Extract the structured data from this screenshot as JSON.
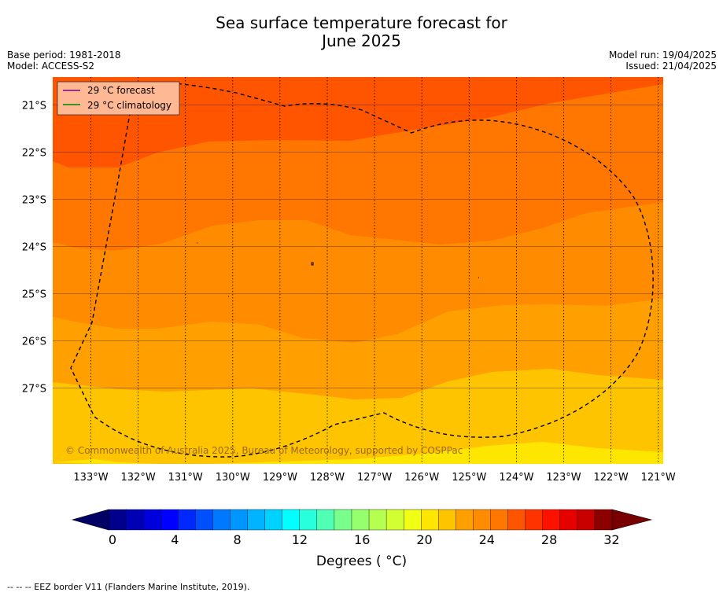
{
  "header": {
    "title_line1": "Sea surface temperature forecast for",
    "title_line2": "June 2025",
    "base_period": "Base period: 1981-2018",
    "model": "Model: ACCESS-S2",
    "model_run": "Model run: 19/04/2025",
    "issued": "Issued: 21/04/2025"
  },
  "legend": {
    "forecast": "29 °C  forecast",
    "climatology": "29 °C  climatology",
    "forecast_color": "#800080",
    "climatology_color": "#008000"
  },
  "map": {
    "lon_labels": [
      "133°W",
      "132°W",
      "131°W",
      "130°W",
      "129°W",
      "128°W",
      "127°W",
      "126°W",
      "125°W",
      "124°W",
      "123°W",
      "122°W",
      "121°W"
    ],
    "lat_labels": [
      "21°S",
      "22°S",
      "23°S",
      "24°S",
      "25°S",
      "26°S",
      "27°S"
    ],
    "copyright": "© Commonwealth of Australia 2025, Bureau of Meteorology, supported by COSPPac",
    "band_colors": [
      "#ff5500",
      "#ff7700",
      "#ff8c00",
      "#ffa000",
      "#ffc400",
      "#ffe600"
    ]
  },
  "colorbar": {
    "ticks": [
      "0",
      "4",
      "8",
      "12",
      "16",
      "20",
      "24",
      "28",
      "32"
    ],
    "label": "Degrees ( °C)",
    "colors": [
      "#00008c",
      "#0000b4",
      "#0000dc",
      "#0000ff",
      "#0028ff",
      "#0050ff",
      "#0078ff",
      "#0096ff",
      "#00b4ff",
      "#00d2ff",
      "#00ffff",
      "#28ffdc",
      "#50ffb4",
      "#78ff8c",
      "#96ff6e",
      "#b4ff50",
      "#d2ff32",
      "#f0ff14",
      "#ffe600",
      "#ffc400",
      "#ffa000",
      "#ff8c00",
      "#ff7700",
      "#ff5500",
      "#ff3300",
      "#ff1100",
      "#e60000",
      "#c80000",
      "#8c0000"
    ],
    "low_extend_color": "#000064",
    "high_extend_color": "#780000"
  },
  "footer": "--  --  -- EEZ border V11 (Flanders Marine Institute, 2019)."
}
